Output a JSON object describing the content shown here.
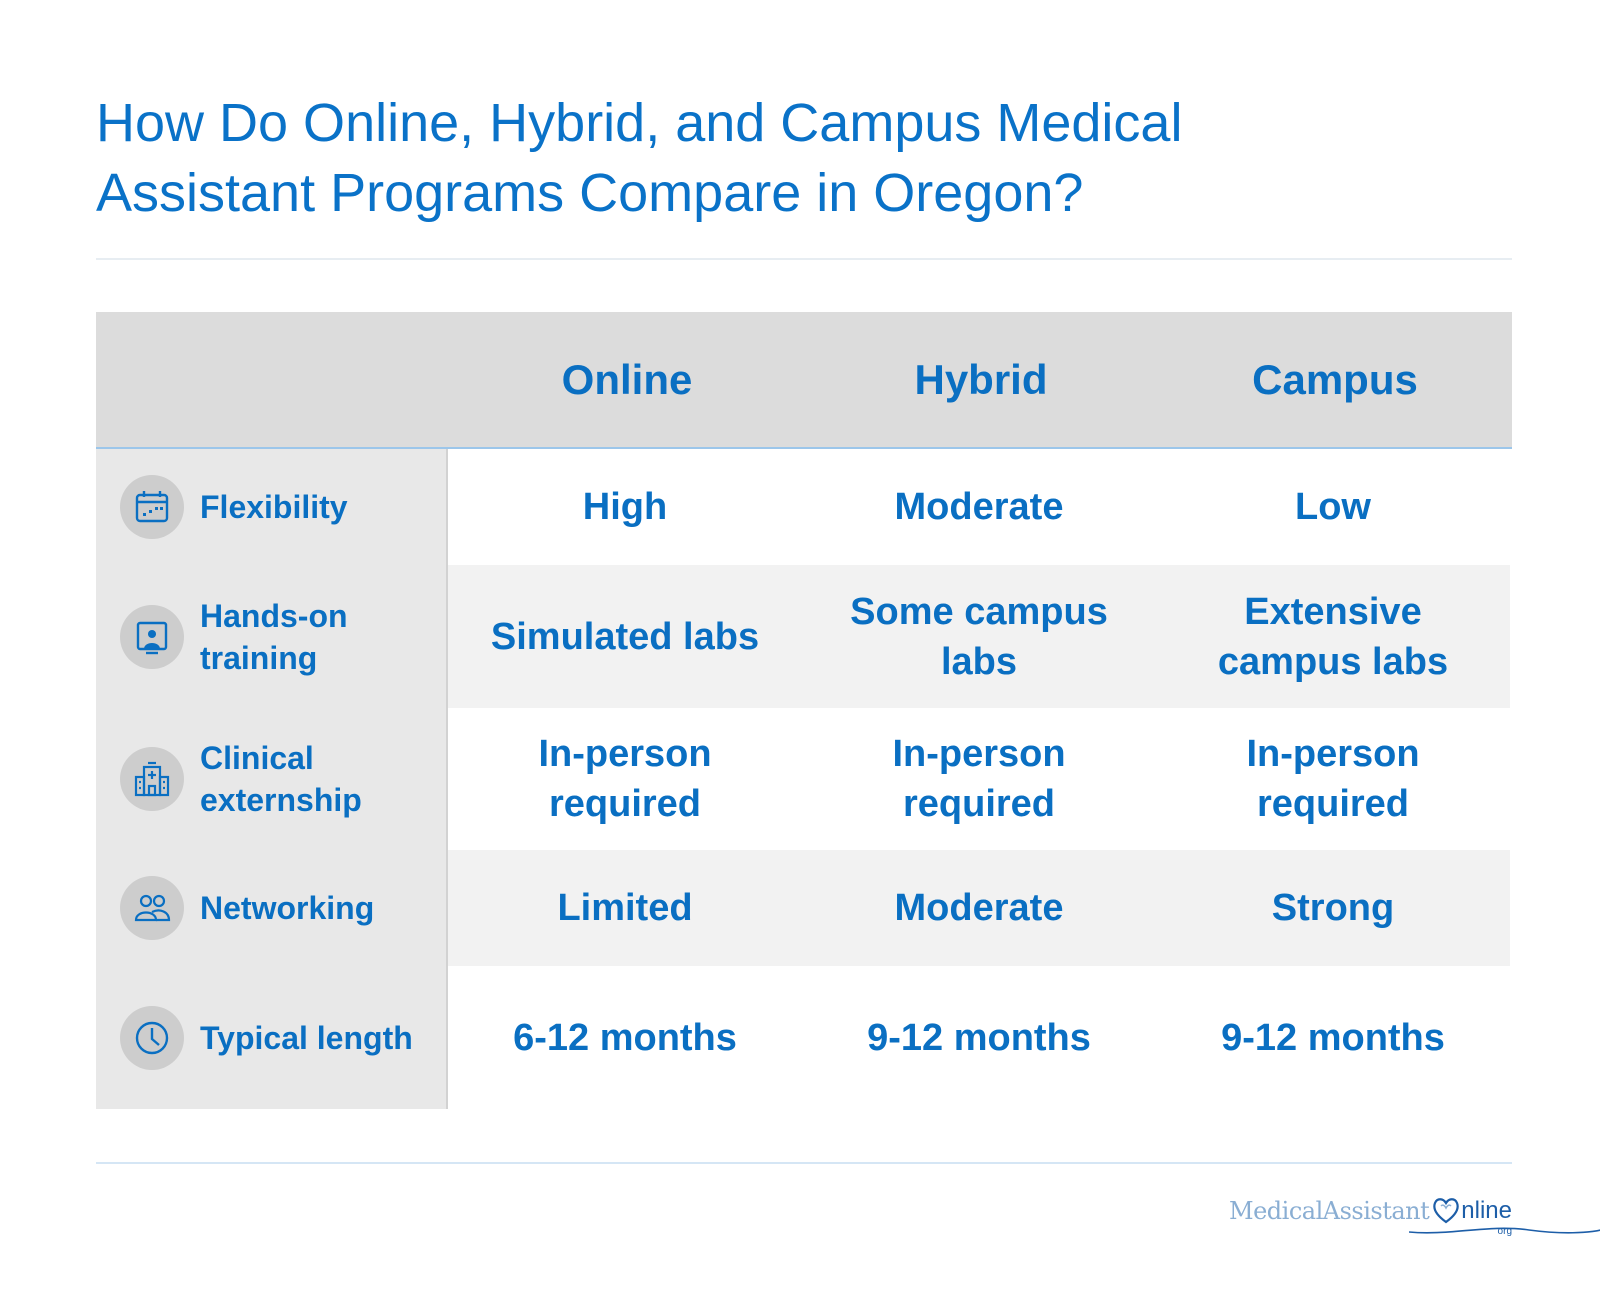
{
  "title": "How Do Online, Hybrid, and Campus Medical Assistant Programs Compare in Oregon?",
  "columns": [
    "Online",
    "Hybrid",
    "Campus"
  ],
  "rows": [
    {
      "label": "Flexibility",
      "icon": "calendar-icon",
      "values": [
        "High",
        "Moderate",
        "Low"
      ]
    },
    {
      "label": "Hands-on training",
      "icon": "presentation-user-icon",
      "values": [
        "Simulated labs",
        "Some campus labs",
        "Extensive campus labs"
      ]
    },
    {
      "label": "Clinical externship",
      "icon": "hospital-building-icon",
      "values": [
        "In-person required",
        "In-person required",
        "In-person required"
      ]
    },
    {
      "label": "Networking",
      "icon": "people-group-icon",
      "values": [
        "Limited",
        "Moderate",
        "Strong"
      ]
    },
    {
      "label": "Typical length",
      "icon": "clock-icon",
      "values": [
        "6-12 months",
        "9-12 months",
        "9-12 months"
      ]
    }
  ],
  "logo": {
    "part1": "MedicalAssistant",
    "part2": "nline",
    "suffix": "org"
  },
  "colors": {
    "accent": "#0a6fc2",
    "header_bg": "#dcdcdc",
    "label_bg": "#e8e8e8",
    "alt_row": "#f2f2f2"
  }
}
